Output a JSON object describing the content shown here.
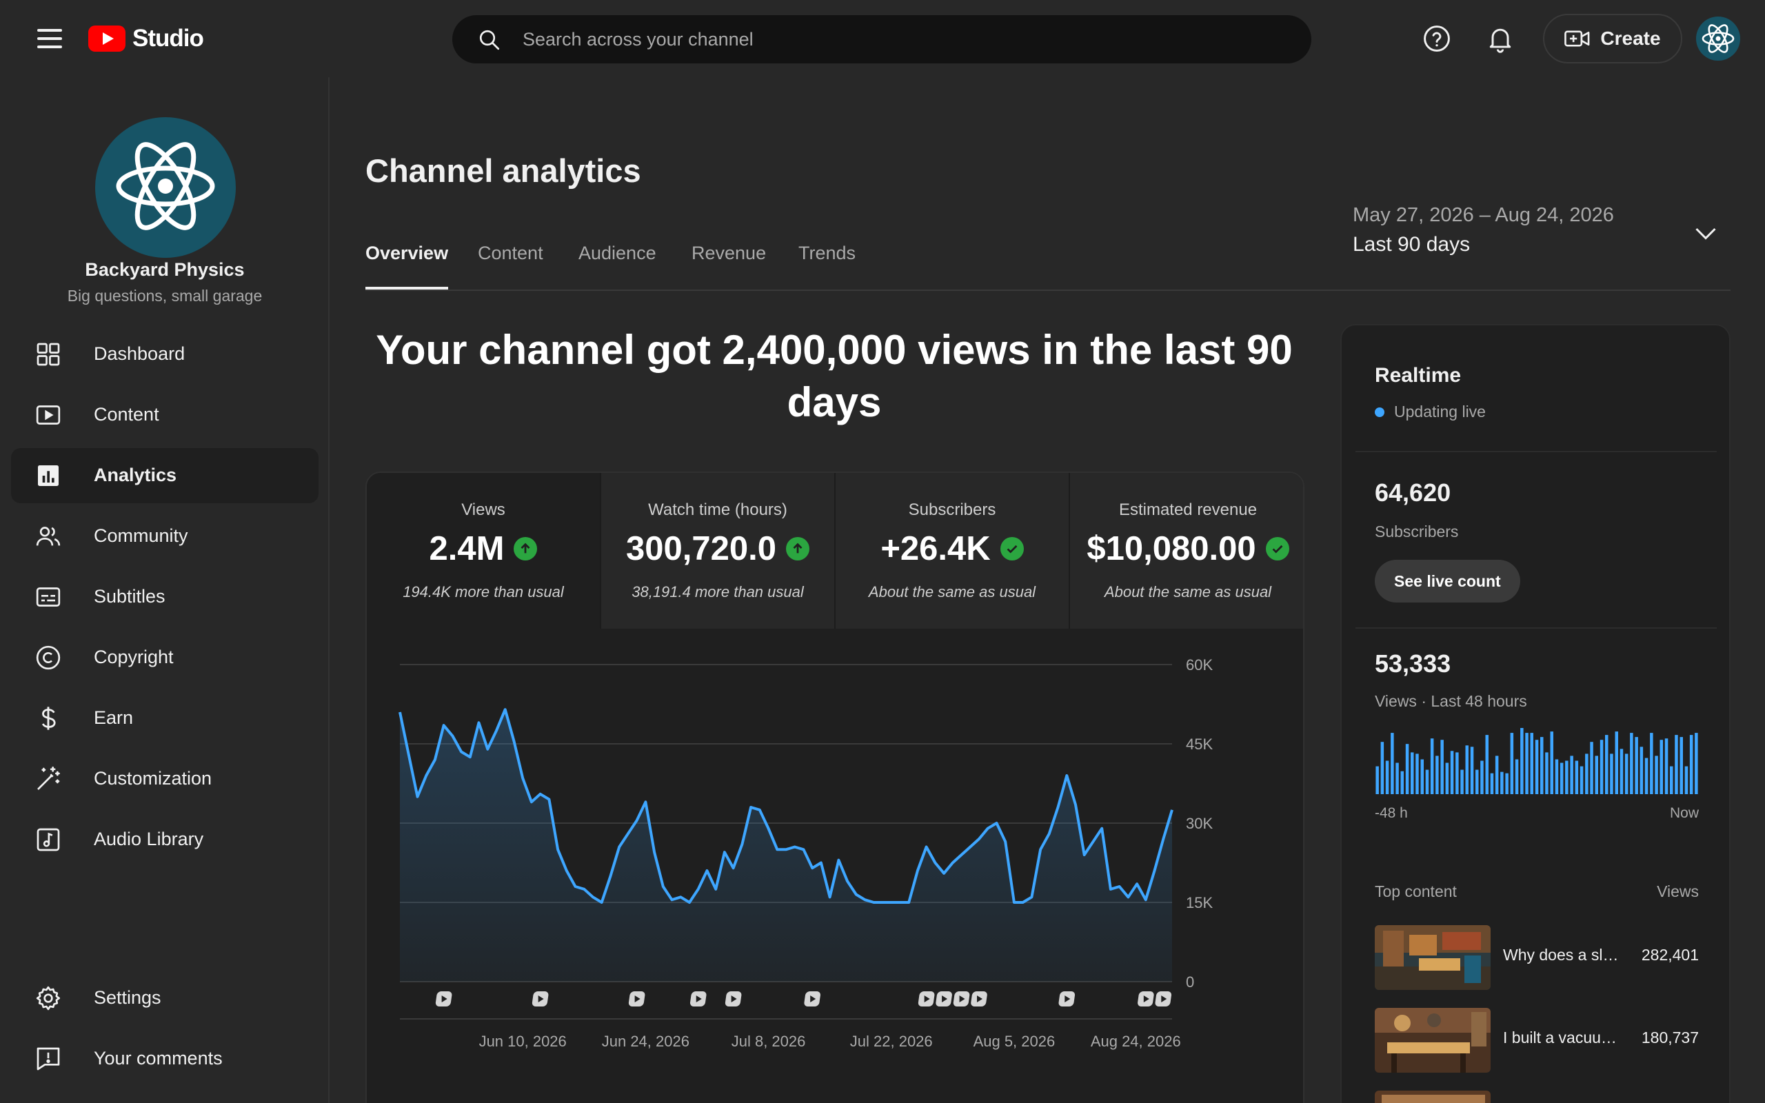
{
  "header": {
    "app_name": "Studio",
    "search_placeholder": "Search across your channel",
    "create_label": "Create",
    "icons": [
      "menu-icon",
      "youtube-logo",
      "search-icon",
      "help-icon",
      "notifications-icon",
      "create-video-icon",
      "atom-avatar"
    ]
  },
  "sidebar": {
    "channel_name": "Backyard Physics",
    "channel_description": "Big questions, small garage",
    "items": [
      {
        "label": "Dashboard",
        "icon": "dashboard-icon",
        "active": false
      },
      {
        "label": "Content",
        "icon": "content-icon",
        "active": false
      },
      {
        "label": "Analytics",
        "icon": "analytics-icon",
        "active": true
      },
      {
        "label": "Community",
        "icon": "community-icon",
        "active": false
      },
      {
        "label": "Subtitles",
        "icon": "subtitles-icon",
        "active": false
      },
      {
        "label": "Copyright",
        "icon": "copyright-icon",
        "active": false
      },
      {
        "label": "Earn",
        "icon": "earn-icon",
        "active": false
      },
      {
        "label": "Customization",
        "icon": "customization-icon",
        "active": false
      },
      {
        "label": "Audio Library",
        "icon": "audio-library-icon",
        "active": false
      }
    ],
    "bottom_items": [
      {
        "label": "Settings",
        "icon": "settings-icon"
      },
      {
        "label": "Your comments",
        "icon": "feedback-icon"
      }
    ]
  },
  "main": {
    "title": "Channel analytics",
    "tabs": [
      "Overview",
      "Content",
      "Audience",
      "Revenue",
      "Trends"
    ],
    "active_tab": "Overview",
    "date_range": "May 27, 2026 – Aug 24, 2026",
    "date_label": "Last 90 days",
    "headline": "Your channel got 2,400,000 views in the last 90 days",
    "metrics": [
      {
        "title": "Views",
        "value": "2.4M",
        "note": "194.4K more than usual",
        "status": "up"
      },
      {
        "title": "Watch time (hours)",
        "value": "300,720.0",
        "note": "38,191.4 more than usual",
        "status": "up"
      },
      {
        "title": "Subscribers",
        "value": "+26.4K",
        "note": "About the same as usual",
        "status": "same"
      },
      {
        "title": "Estimated revenue",
        "value": "$10,080.00",
        "note": "About the same as usual",
        "status": "same"
      }
    ]
  },
  "chart_data": {
    "type": "area",
    "series_name": "Views",
    "color": "#3ea6ff",
    "y_ticks": [
      "60K",
      "45K",
      "30K",
      "15K",
      "0"
    ],
    "ylim": [
      0,
      60000
    ],
    "x_ticks": [
      "Jun 10, 2026",
      "Jun 24, 2026",
      "Jul 8, 2026",
      "Jul 22, 2026",
      "Aug 5, 2026",
      "Aug 24, 2026"
    ],
    "x_tick_days": [
      14,
      28,
      42,
      56,
      70,
      89
    ],
    "values": [
      51000,
      43000,
      35000,
      39000,
      42000,
      48500,
      46500,
      43500,
      42500,
      49000,
      44000,
      47500,
      51500,
      45500,
      38500,
      34000,
      35500,
      34500,
      25000,
      21000,
      18000,
      17500,
      16000,
      15000,
      20000,
      25500,
      28000,
      30500,
      34000,
      24500,
      18000,
      15500,
      16000,
      15000,
      17500,
      21000,
      17500,
      24500,
      21500,
      26000,
      33000,
      32500,
      29000,
      25000,
      25000,
      25500,
      25000,
      21500,
      22500,
      16000,
      23000,
      19000,
      16500,
      15500,
      15000,
      15000,
      15000,
      15000,
      15000,
      21000,
      25500,
      22500,
      20500,
      22500,
      24000,
      25500,
      27000,
      29000,
      30000,
      26500,
      15000,
      15000,
      16000,
      25000,
      28000,
      33000,
      39000,
      33500,
      24000,
      26500,
      29000,
      17500,
      18000,
      16000,
      18500,
      15500,
      21000,
      27000,
      32500
    ],
    "upload_markers_day": [
      5,
      16,
      27,
      34,
      38,
      47,
      60,
      62,
      64,
      66,
      76,
      85,
      87
    ]
  },
  "realtime": {
    "title": "Realtime",
    "status": "Updating live",
    "subscribers_value": "64,620",
    "subscribers_label": "Subscribers",
    "live_button": "See live count",
    "views_value": "53,333",
    "views_label": "Views · Last 48 hours",
    "hourly_views": [
      40,
      75,
      48,
      88,
      45,
      33,
      72,
      60,
      58,
      50,
      35,
      80,
      55,
      78,
      45,
      62,
      60,
      35,
      70,
      68,
      35,
      48,
      85,
      30,
      55,
      32,
      30,
      88,
      50,
      95,
      88,
      88,
      78,
      82,
      60,
      90,
      50,
      45,
      48,
      55,
      48,
      40,
      58,
      75,
      55,
      78,
      85,
      58,
      90,
      65,
      58,
      88,
      82,
      68,
      52,
      88,
      55,
      78,
      80,
      40,
      85,
      82,
      40,
      85,
      88
    ],
    "axis_start": "-48 h",
    "axis_end": "Now",
    "top_content_label": "Top content",
    "top_content_metric": "Views",
    "top_content": [
      {
        "title": "Why does a sli…",
        "views": "282,401"
      },
      {
        "title": "I built a vacuu…",
        "views": "180,737"
      }
    ]
  }
}
